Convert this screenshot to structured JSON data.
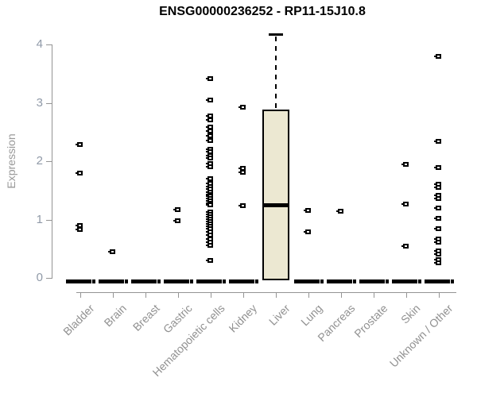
{
  "chart_data": {
    "type": "boxplot",
    "title": "ENSG00000236252 - RP11-15J10.8",
    "xlabel": "",
    "ylabel": "Expression",
    "ylim": [
      0,
      4
    ],
    "yticks": [
      0,
      1,
      2,
      3,
      4
    ],
    "grid": false,
    "legend": false,
    "categories": [
      "Bladder",
      "Brain",
      "Breast",
      "Gastric",
      "Hematopoietic cells",
      "Kidney",
      "Liver",
      "Lung",
      "Pancreas",
      "Prostate",
      "Skin",
      "Unknown / Other"
    ],
    "series": [
      {
        "category": "Bladder",
        "zero_line": true,
        "points": [
          2.28,
          1.8,
          0.9,
          0.83
        ]
      },
      {
        "category": "Brain",
        "zero_line": true,
        "points": [
          0.45
        ]
      },
      {
        "category": "Breast",
        "zero_line": true,
        "points": []
      },
      {
        "category": "Gastric",
        "zero_line": true,
        "points": [
          1.17,
          0.98
        ]
      },
      {
        "category": "Hematopoietic cells",
        "zero_line": true,
        "points": [
          3.42,
          3.05,
          2.78,
          2.71,
          2.58,
          2.52,
          2.43,
          2.36,
          2.21,
          2.16,
          2.1,
          2.05,
          1.96,
          1.9,
          1.7,
          1.62,
          1.57,
          1.52,
          1.47,
          1.43,
          1.4,
          1.36,
          1.32,
          1.28,
          1.25,
          1.13,
          1.09,
          1.05,
          1.01,
          0.97,
          0.93,
          0.89,
          0.85,
          0.79,
          0.73,
          0.66,
          0.61,
          0.56,
          0.3
        ]
      },
      {
        "category": "Kidney",
        "zero_line": true,
        "points": [
          2.92,
          1.88,
          1.81,
          1.24
        ]
      },
      {
        "category": "Liver",
        "zero_line": false,
        "points": [],
        "box": {
          "whisker_high": 4.18,
          "q3": 2.88,
          "median": 1.25,
          "q1": 0,
          "whisker_low": 0
        }
      },
      {
        "category": "Lung",
        "zero_line": true,
        "points": [
          1.16,
          0.79
        ]
      },
      {
        "category": "Pancreas",
        "zero_line": true,
        "points": [
          1.14
        ]
      },
      {
        "category": "Prostate",
        "zero_line": true,
        "points": []
      },
      {
        "category": "Skin",
        "zero_line": true,
        "points": [
          1.95,
          1.26,
          0.55
        ]
      },
      {
        "category": "Unknown / Other",
        "zero_line": true,
        "points": [
          3.79,
          2.34,
          1.89,
          1.6,
          1.55,
          1.41,
          1.36,
          1.2,
          1.02,
          0.85,
          0.66,
          0.61,
          0.46,
          0.41,
          0.31,
          0.26
        ]
      }
    ],
    "colors": {
      "box_fill": "#ece8d2",
      "box_border": "#000000",
      "median": "#000000",
      "zero_line": "#000000",
      "marker_border": "#000000",
      "marker_fill": "#ffffff",
      "axis": "#949494",
      "tick_label": "#909aa8",
      "category_label": "#919191",
      "title": "#000000"
    }
  }
}
